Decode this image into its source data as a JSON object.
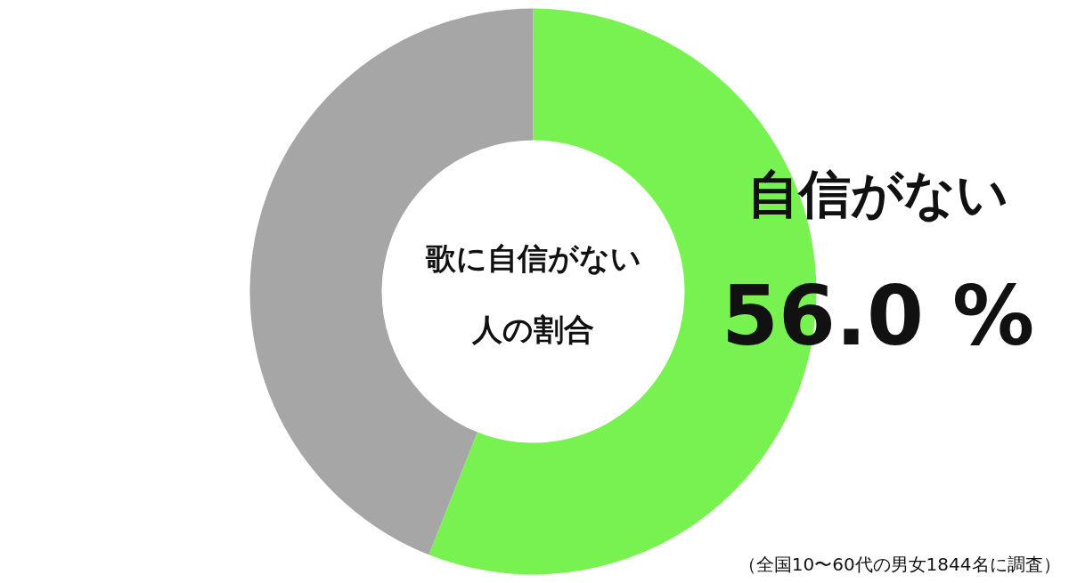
{
  "chart_data": {
    "type": "donut",
    "title": "歌に自信がない人の割合",
    "categories": [
      "自信がない",
      null
    ],
    "values": [
      56.0,
      44.0
    ],
    "colors": [
      "#77f250",
      "#a6a6a6"
    ],
    "value_labels": [
      "56.0 %",
      null
    ],
    "annotations": [
      "（全国10〜60代の男女1844名に調査）"
    ]
  }
}
